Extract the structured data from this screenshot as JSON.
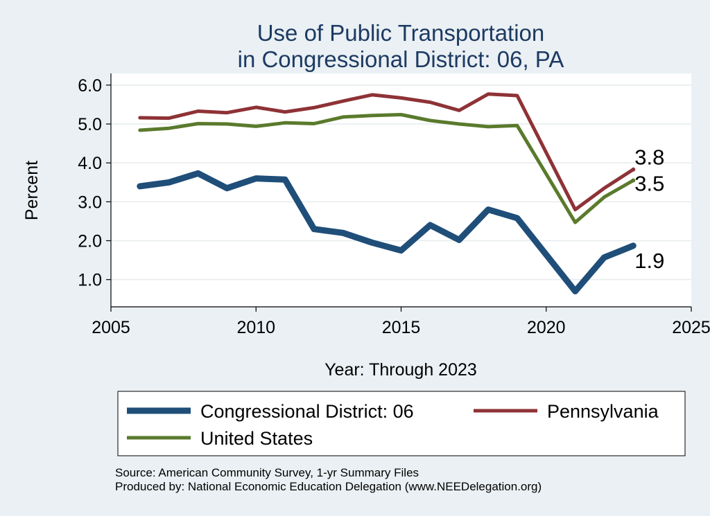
{
  "chart_data": {
    "type": "line",
    "title": "Use of Public Transportation",
    "subtitle": "in Congressional District: 06, PA",
    "xlabel": "Year: Through 2023",
    "ylabel": "Percent",
    "xlim": [
      2005,
      2025
    ],
    "ylim": [
      0.3,
      6.3
    ],
    "x_ticks": [
      2005,
      2010,
      2015,
      2020,
      2025
    ],
    "y_ticks": [
      1.0,
      2.0,
      3.0,
      4.0,
      5.0,
      6.0
    ],
    "y_tick_labels": [
      "1.0",
      "2.0",
      "3.0",
      "4.0",
      "5.0",
      "6.0"
    ],
    "grid": "horizontal",
    "legend_position": "bottom",
    "x": [
      2006,
      2007,
      2008,
      2009,
      2010,
      2011,
      2012,
      2013,
      2014,
      2015,
      2016,
      2017,
      2018,
      2019,
      2021,
      2022,
      2023
    ],
    "series": [
      {
        "name": "Congressional District: 06",
        "color": "#1f4e79",
        "values": [
          3.4,
          3.5,
          3.73,
          3.35,
          3.6,
          3.57,
          2.3,
          2.2,
          1.95,
          1.75,
          2.4,
          2.02,
          2.8,
          2.58,
          0.7,
          1.57,
          1.87
        ],
        "end_label": "1.9"
      },
      {
        "name": "Pennsylvania",
        "color": "#8e3236",
        "values": [
          5.16,
          5.15,
          5.33,
          5.29,
          5.43,
          5.31,
          5.42,
          5.59,
          5.75,
          5.67,
          5.56,
          5.35,
          5.77,
          5.73,
          2.8,
          3.35,
          3.83
        ],
        "end_label": "3.8"
      },
      {
        "name": "United States",
        "color": "#5a7a2c",
        "values": [
          4.84,
          4.89,
          5.01,
          5.0,
          4.94,
          5.03,
          5.01,
          5.18,
          5.22,
          5.24,
          5.09,
          5.0,
          4.93,
          4.96,
          2.47,
          3.12,
          3.55
        ],
        "end_label": "3.5"
      }
    ],
    "source_line": "Source: American Community Survey, 1-yr Summary Files",
    "produced_line": "Produced by: National Economic Education Delegation (www.NEEDelegation.org)"
  }
}
